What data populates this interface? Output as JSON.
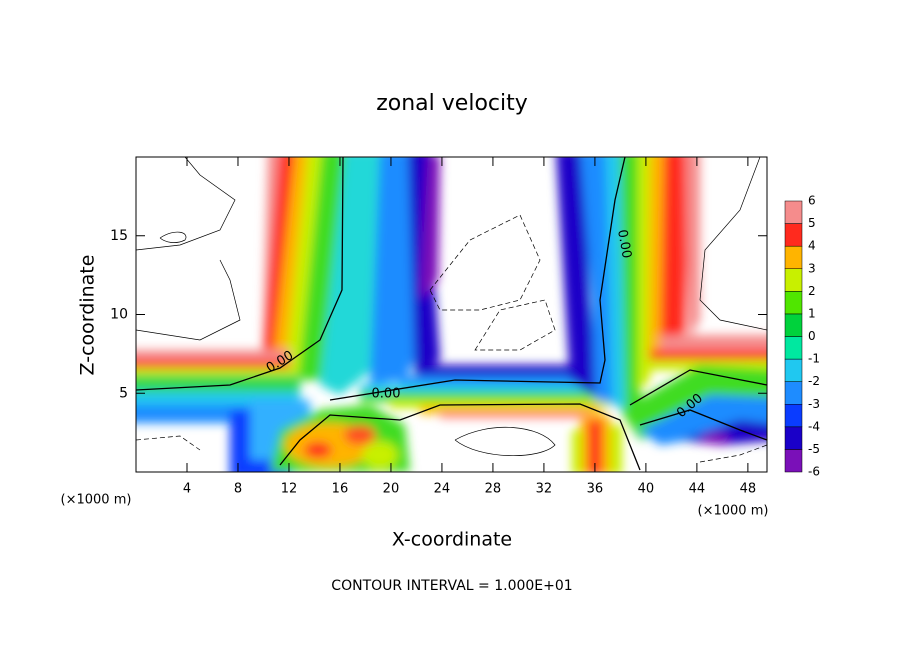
{
  "chart_data": {
    "type": "contour",
    "title": "zonal velocity",
    "xlabel": "X-coordinate",
    "ylabel": "Z-coordinate",
    "y_unit": "(×1000 m)",
    "x_unit": "(×1000 m)",
    "xlim": [
      0,
      49.5
    ],
    "ylim": [
      0,
      20
    ],
    "xticks": [
      4,
      8,
      12,
      16,
      20,
      24,
      28,
      32,
      36,
      40,
      44,
      48
    ],
    "yticks": [
      5,
      10,
      15
    ],
    "colorbar": {
      "levels": [
        -6,
        -5,
        -4,
        -3,
        -2,
        -1,
        0,
        1,
        2,
        3,
        4,
        5,
        6
      ],
      "colors": [
        "#7a10b8",
        "#1a00c8",
        "#0a3cff",
        "#1e8cff",
        "#20c8f0",
        "#00e8a0",
        "#00d23c",
        "#50e600",
        "#c8f000",
        "#ffb400",
        "#ff2a1e",
        "#f58c8c"
      ]
    },
    "contour_labels": [
      "0.00",
      "0.00",
      "0.00",
      "0.00"
    ],
    "footnote": "CONTOUR INTERVAL = 1.000E+01"
  }
}
